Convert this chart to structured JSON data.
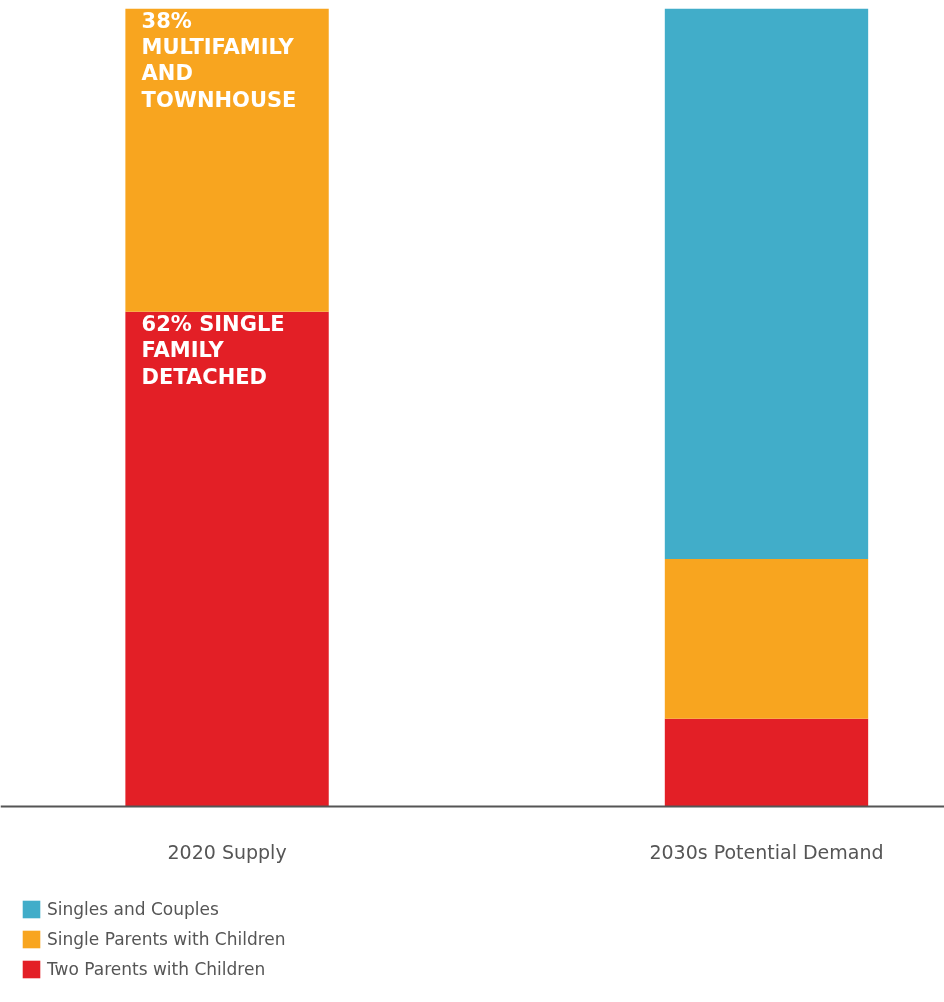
{
  "chart_data": {
    "type": "bar",
    "stacked": true,
    "tick_labels": "x",
    "categories": [
      "2020 Supply",
      "2030s Potential Demand"
    ],
    "series": [
      {
        "name": "Two Parents with Children",
        "color": "#e31f26",
        "values": [
          0.62,
          0.11
        ],
        "value_labels": [
          "62% SINGLE FAMILY DETACHED",
          null
        ]
      },
      {
        "name": "Single Parents with Children",
        "color": "#f8a51f",
        "values": [
          0.38,
          0.2
        ],
        "value_labels": [
          "38% MULTIFAMILY AND TOWNHOUSE",
          null
        ]
      },
      {
        "name": "Singles and Couples",
        "color": "#41adc9",
        "values": [
          null,
          0.69
        ]
      }
    ],
    "legend": "bottom left"
  }
}
